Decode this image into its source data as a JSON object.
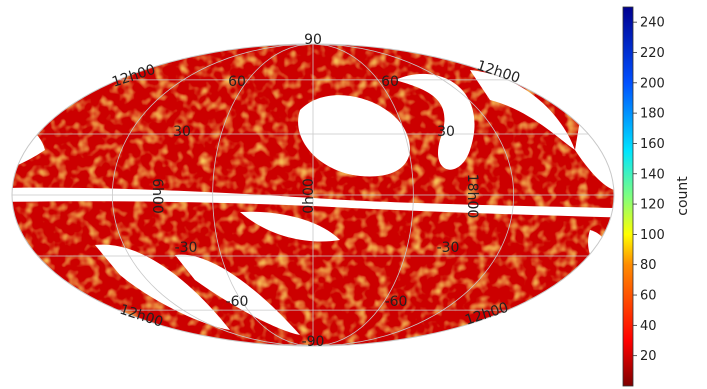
{
  "chart_data": {
    "type": "heatmap",
    "projection": "mollweide",
    "grid": true,
    "meridian_labels": [
      "12h00",
      "12h00",
      "6h00",
      "0h00",
      "18h00",
      "12h00"
    ],
    "parallel_labels": {
      "top": "90",
      "bottom": "-90",
      "left_60": "60",
      "left_30": "30",
      "left_m30": "-30",
      "left_m60": "-60",
      "right_60": "60",
      "right_30": "30",
      "right_m30": "-30",
      "right_m60": "-60"
    },
    "colorbar": {
      "label": "count",
      "range": [
        0,
        250
      ],
      "colormap": "jet",
      "ticks": [
        20,
        40,
        60,
        80,
        100,
        120,
        140,
        160,
        180,
        200,
        220,
        240
      ]
    },
    "density_description_colors": {
      "low": "#cc0000",
      "mid": "#ff7700",
      "high": "#ffe030"
    }
  }
}
